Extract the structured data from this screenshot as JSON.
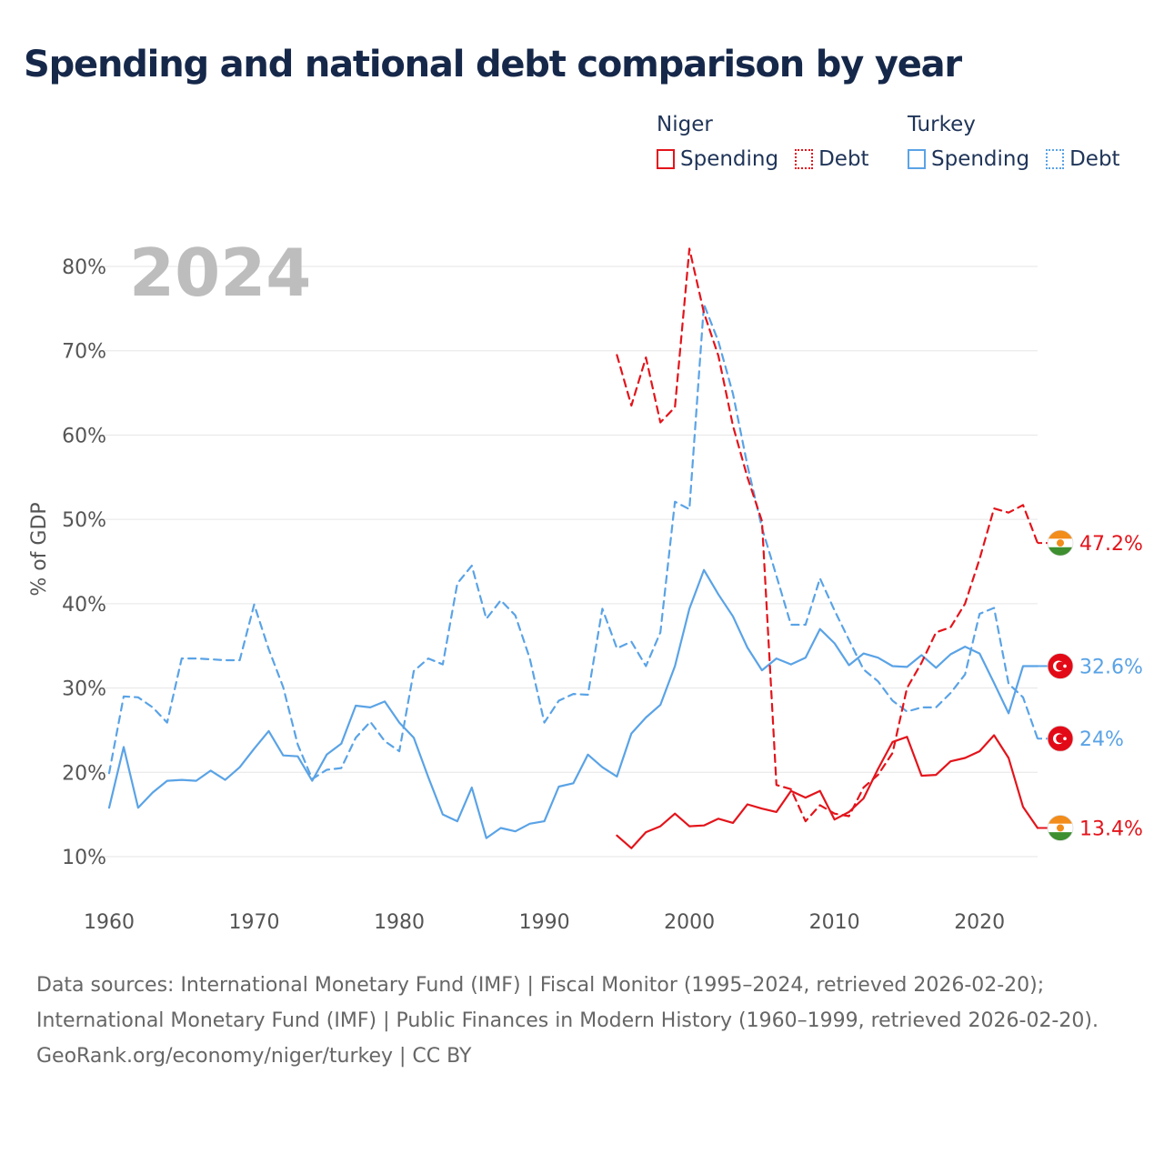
{
  "title": "Spending and national debt comparison by year",
  "legend": {
    "groups": [
      {
        "name": "Niger",
        "items": [
          {
            "label": "Spending",
            "style": "solid",
            "color": "#e3141b"
          },
          {
            "label": "Debt",
            "style": "dotted",
            "color": "#e3141b"
          }
        ]
      },
      {
        "name": "Turkey",
        "items": [
          {
            "label": "Spending",
            "style": "solid",
            "color": "#5aa3e6"
          },
          {
            "label": "Debt",
            "style": "dotted",
            "color": "#5aa3e6"
          }
        ]
      }
    ]
  },
  "year_label": "2024",
  "colors": {
    "niger": "#e3141b",
    "turkey": "#5aa3e6",
    "grid": "#e6e6e6",
    "axis_text": "#555555",
    "year": "#bdbdbd"
  },
  "chart_data": {
    "type": "line",
    "ylabel": "% of GDP",
    "xlabel": "",
    "xlim": [
      1960,
      2024
    ],
    "ylim": [
      10,
      82
    ],
    "x_ticks": [
      1960,
      1970,
      1980,
      1990,
      2000,
      2010,
      2020
    ],
    "y_ticks": [
      10,
      20,
      30,
      40,
      50,
      60,
      70,
      80
    ],
    "y_tick_labels": [
      "10%",
      "20%",
      "30%",
      "40%",
      "50%",
      "60%",
      "70%",
      "80%"
    ],
    "series": [
      {
        "name": "Turkey Spending",
        "country": "Turkey",
        "kind": "spending",
        "color": "#5aa3e6",
        "dashed": false,
        "end_label": "32.6%",
        "x": [
          1960,
          1961,
          1962,
          1963,
          1964,
          1965,
          1966,
          1967,
          1968,
          1969,
          1970,
          1971,
          1972,
          1973,
          1974,
          1975,
          1976,
          1977,
          1978,
          1979,
          1980,
          1981,
          1982,
          1983,
          1984,
          1985,
          1986,
          1987,
          1988,
          1989,
          1990,
          1991,
          1992,
          1993,
          1994,
          1995,
          1996,
          1997,
          1998,
          1999,
          2000,
          2001,
          2002,
          2003,
          2004,
          2005,
          2006,
          2007,
          2008,
          2009,
          2010,
          2011,
          2012,
          2013,
          2014,
          2015,
          2016,
          2017,
          2018,
          2019,
          2020,
          2021,
          2022,
          2023,
          2024
        ],
        "values": [
          15.8,
          23,
          15.8,
          17.6,
          19,
          19.1,
          19,
          20.2,
          19.1,
          20.6,
          22.8,
          24.9,
          22,
          21.9,
          19,
          22.1,
          23.4,
          27.9,
          27.7,
          28.4,
          25.9,
          24.1,
          19.4,
          15,
          14.2,
          18.2,
          12.2,
          13.4,
          13,
          13.9,
          14.2,
          18.3,
          18.7,
          22.1,
          20.6,
          19.5,
          24.6,
          26.5,
          28,
          32.6,
          39.4,
          44,
          41.1,
          38.5,
          34.8,
          32.1,
          33.5,
          32.8,
          33.6,
          37,
          35.3,
          32.7,
          34.1,
          33.6,
          32.6,
          32.5,
          33.9,
          32.4,
          34,
          34.9,
          34.1,
          30.6,
          27,
          32.6,
          32.6
        ]
      },
      {
        "name": "Turkey Debt",
        "country": "Turkey",
        "kind": "debt",
        "color": "#5aa3e6",
        "dashed": true,
        "end_label": "24%",
        "x": [
          1960,
          1961,
          1962,
          1963,
          1964,
          1965,
          1966,
          1967,
          1968,
          1969,
          1970,
          1971,
          1972,
          1973,
          1974,
          1975,
          1976,
          1977,
          1978,
          1979,
          1980,
          1981,
          1982,
          1983,
          1984,
          1985,
          1986,
          1987,
          1988,
          1989,
          1990,
          1991,
          1992,
          1993,
          1994,
          1995,
          1996,
          1997,
          1998,
          1999,
          2000,
          2001,
          2002,
          2003,
          2004,
          2005,
          2006,
          2007,
          2008,
          2009,
          2010,
          2011,
          2012,
          2013,
          2014,
          2015,
          2016,
          2017,
          2018,
          2019,
          2020,
          2021,
          2022,
          2023,
          2024
        ],
        "values": [
          19.9,
          29,
          28.9,
          27.7,
          25.9,
          33.5,
          33.5,
          33.4,
          33.3,
          33.3,
          39.9,
          34.6,
          30.1,
          23.3,
          19.2,
          20.3,
          20.5,
          24.1,
          26,
          23.7,
          22.5,
          32,
          33.5,
          32.8,
          42.4,
          44.5,
          38.2,
          40.4,
          38.6,
          33.5,
          25.9,
          28.5,
          29.3,
          29.2,
          39.4,
          34.7,
          35.5,
          32.6,
          36.6,
          52.1,
          51.2,
          75.5,
          71.1,
          64.9,
          56.4,
          49,
          43.3,
          37.5,
          37.5,
          43,
          39.2,
          35.7,
          32.2,
          30.8,
          28.5,
          27.2,
          27.7,
          27.7,
          29.4,
          31.6,
          38.8,
          39.5,
          30.5,
          28.9,
          24
        ]
      },
      {
        "name": "Niger Spending",
        "country": "Niger",
        "kind": "spending",
        "color": "#e3141b",
        "dashed": false,
        "end_label": "13.4%",
        "x": [
          1995,
          1996,
          1997,
          1998,
          1999,
          2000,
          2001,
          2002,
          2003,
          2004,
          2005,
          2006,
          2007,
          2008,
          2009,
          2010,
          2011,
          2012,
          2013,
          2014,
          2015,
          2016,
          2017,
          2018,
          2019,
          2020,
          2021,
          2022,
          2023,
          2024
        ],
        "values": [
          12.5,
          11,
          12.9,
          13.6,
          15.1,
          13.6,
          13.7,
          14.5,
          14,
          16.2,
          15.7,
          15.3,
          17.8,
          17,
          17.8,
          14.4,
          15.3,
          16.9,
          20.4,
          23.6,
          24.2,
          19.6,
          19.7,
          21.3,
          21.7,
          22.5,
          24.4,
          21.7,
          15.9,
          13.4
        ]
      },
      {
        "name": "Niger Debt",
        "country": "Niger",
        "kind": "debt",
        "color": "#e3141b",
        "dashed": true,
        "end_label": "47.2%",
        "x": [
          1995,
          1996,
          1997,
          1998,
          1999,
          2000,
          2001,
          2002,
          2003,
          2004,
          2005,
          2006,
          2007,
          2008,
          2009,
          2010,
          2011,
          2012,
          2013,
          2014,
          2015,
          2016,
          2017,
          2018,
          2019,
          2020,
          2021,
          2022,
          2023,
          2024
        ],
        "values": [
          69.5,
          63.5,
          69.2,
          61.5,
          63.3,
          82.1,
          74.5,
          69.4,
          61.1,
          55,
          49.8,
          18.5,
          18,
          14.2,
          16.1,
          15.1,
          14.8,
          18.2,
          19.7,
          22.3,
          30,
          33,
          36.6,
          37.2,
          40,
          45.3,
          51.3,
          50.8,
          51.7,
          47.2
        ]
      }
    ]
  },
  "sources": {
    "line1": "Data sources: International Monetary Fund (IMF) | Fiscal Monitor (1995–2024, retrieved 2026-02-20); International Monetary Fund (IMF) | Public Finances in Modern History (1960–1999, retrieved 2026-02-20).",
    "line2": "GeoRank.org/economy/niger/turkey | CC BY"
  }
}
